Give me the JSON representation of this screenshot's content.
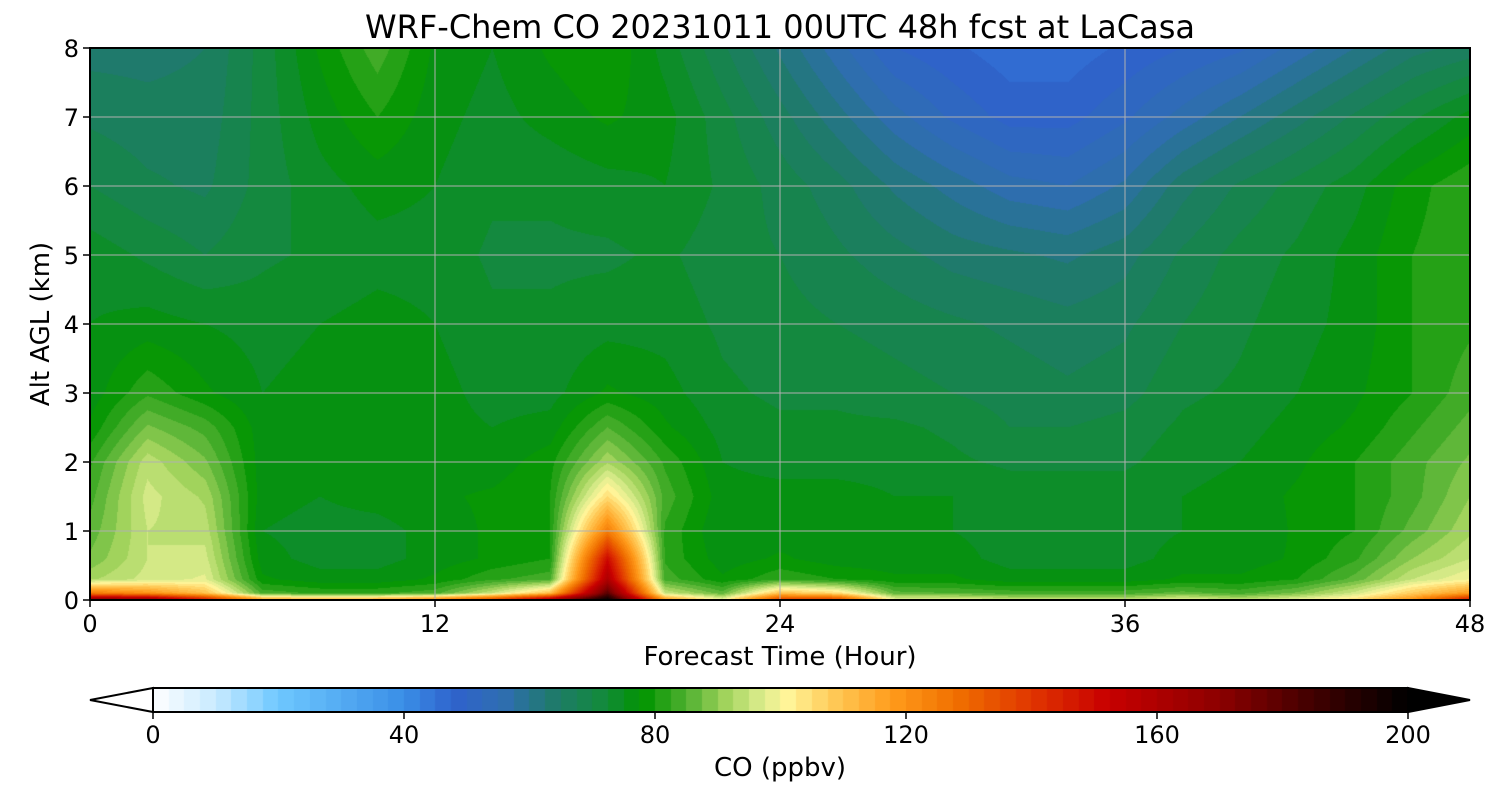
{
  "chart_data": {
    "type": "heatmap",
    "title": "WRF-Chem CO  20231011 00UTC 48h fcst at LaCasa",
    "xlabel": "Forecast Time (Hour)",
    "ylabel": "Alt AGL (km)",
    "xlim": [
      0,
      48
    ],
    "ylim": [
      0,
      8
    ],
    "xticks": [
      "0",
      "12",
      "24",
      "36",
      "48"
    ],
    "yticks": [
      "0",
      "1",
      "2",
      "3",
      "4",
      "5",
      "6",
      "7",
      "8"
    ],
    "grid": true,
    "colorbar": {
      "label": "CO  (ppbv)",
      "range": [
        0,
        200
      ],
      "ticks": [
        "0",
        "40",
        "80",
        "120",
        "160",
        "200"
      ],
      "extend": "both",
      "stops": [
        {
          "v": 0,
          "c": "#ffffff"
        },
        {
          "v": 10,
          "c": "#c8eaff"
        },
        {
          "v": 20,
          "c": "#6ec8ff"
        },
        {
          "v": 40,
          "c": "#3a8ee6"
        },
        {
          "v": 48,
          "c": "#2f62cc"
        },
        {
          "v": 56,
          "c": "#2f6eb0"
        },
        {
          "v": 64,
          "c": "#1e7a6a"
        },
        {
          "v": 72,
          "c": "#138a3a"
        },
        {
          "v": 78,
          "c": "#009400"
        },
        {
          "v": 85,
          "c": "#4fb030"
        },
        {
          "v": 91,
          "c": "#9ed25a"
        },
        {
          "v": 97,
          "c": "#dcec8c"
        },
        {
          "v": 101,
          "c": "#fff59a"
        },
        {
          "v": 108,
          "c": "#ffcc5a"
        },
        {
          "v": 118,
          "c": "#ff9a1a"
        },
        {
          "v": 128,
          "c": "#f07000"
        },
        {
          "v": 140,
          "c": "#e03600"
        },
        {
          "v": 152,
          "c": "#c80000"
        },
        {
          "v": 170,
          "c": "#8c0000"
        },
        {
          "v": 185,
          "c": "#400000"
        },
        {
          "v": 200,
          "c": "#000000"
        }
      ]
    },
    "grid_hours": [
      0,
      2,
      4,
      6,
      8,
      10,
      12,
      14,
      16,
      18,
      20,
      22,
      24,
      26,
      28,
      30,
      32,
      34,
      36,
      38,
      40,
      42,
      44,
      46,
      48
    ],
    "grid_alt_km": [
      0,
      0.1,
      0.3,
      0.6,
      1,
      1.5,
      2,
      2.5,
      3,
      4,
      5,
      6,
      7,
      8
    ],
    "values_ppbv": [
      [
        175,
        172,
        150,
        120,
        115,
        118,
        125,
        140,
        165,
        200,
        120,
        100,
        140,
        140,
        100,
        100,
        96,
        96,
        95,
        100,
        95,
        100,
        105,
        120,
        150
      ],
      [
        125,
        120,
        110,
        84,
        82,
        82,
        84,
        95,
        110,
        180,
        95,
        86,
        110,
        105,
        86,
        85,
        84,
        84,
        84,
        86,
        84,
        88,
        96,
        108,
        118
      ],
      [
        92,
        96,
        98,
        78,
        76,
        76,
        78,
        82,
        84,
        160,
        84,
        78,
        82,
        80,
        78,
        78,
        76,
        76,
        76,
        78,
        78,
        80,
        86,
        95,
        100
      ],
      [
        88,
        95,
        96,
        76,
        74,
        74,
        76,
        78,
        80,
        150,
        82,
        76,
        78,
        76,
        76,
        76,
        74,
        74,
        74,
        76,
        76,
        78,
        82,
        90,
        95
      ],
      [
        86,
        95,
        94,
        75,
        74,
        74,
        76,
        78,
        80,
        125,
        82,
        75,
        76,
        76,
        75,
        75,
        74,
        74,
        74,
        75,
        75,
        78,
        80,
        86,
        92
      ],
      [
        84,
        96,
        92,
        76,
        75,
        76,
        77,
        78,
        80,
        105,
        84,
        76,
        76,
        76,
        75,
        75,
        74,
        74,
        74,
        75,
        76,
        78,
        80,
        84,
        90
      ],
      [
        82,
        94,
        88,
        76,
        76,
        76,
        76,
        76,
        79,
        92,
        82,
        75,
        74,
        74,
        74,
        73,
        72,
        72,
        72,
        74,
        75,
        77,
        80,
        84,
        88
      ],
      [
        78,
        88,
        84,
        76,
        76,
        76,
        76,
        75,
        76,
        85,
        78,
        74,
        73,
        73,
        73,
        72,
        70,
        70,
        71,
        73,
        74,
        76,
        78,
        82,
        86
      ],
      [
        76,
        82,
        78,
        75,
        76,
        77,
        76,
        74,
        74,
        78,
        76,
        73,
        72,
        72,
        71,
        70,
        69,
        68,
        69,
        72,
        73,
        75,
        77,
        80,
        84
      ],
      [
        75,
        76,
        75,
        74,
        75,
        76,
        75,
        73,
        73,
        74,
        74,
        72,
        71,
        70,
        69,
        68,
        67,
        66,
        67,
        70,
        72,
        74,
        76,
        80,
        82
      ],
      [
        74,
        72,
        70,
        72,
        73,
        74,
        74,
        72,
        72,
        72,
        73,
        71,
        70,
        68,
        66,
        64,
        63,
        62,
        64,
        68,
        71,
        73,
        76,
        80,
        82
      ],
      [
        70,
        68,
        67,
        71,
        74,
        76,
        75,
        73,
        73,
        74,
        75,
        72,
        69,
        66,
        62,
        59,
        56,
        55,
        58,
        64,
        68,
        71,
        74,
        79,
        82
      ],
      [
        67,
        66,
        66,
        71,
        76,
        80,
        76,
        74,
        76,
        78,
        76,
        71,
        66,
        61,
        56,
        52,
        49,
        49,
        52,
        56,
        60,
        64,
        68,
        72,
        76
      ],
      [
        64,
        64,
        65,
        71,
        78,
        84,
        77,
        75,
        78,
        80,
        74,
        68,
        62,
        56,
        50,
        48,
        46,
        46,
        48,
        50,
        52,
        56,
        60,
        64,
        66
      ]
    ]
  }
}
